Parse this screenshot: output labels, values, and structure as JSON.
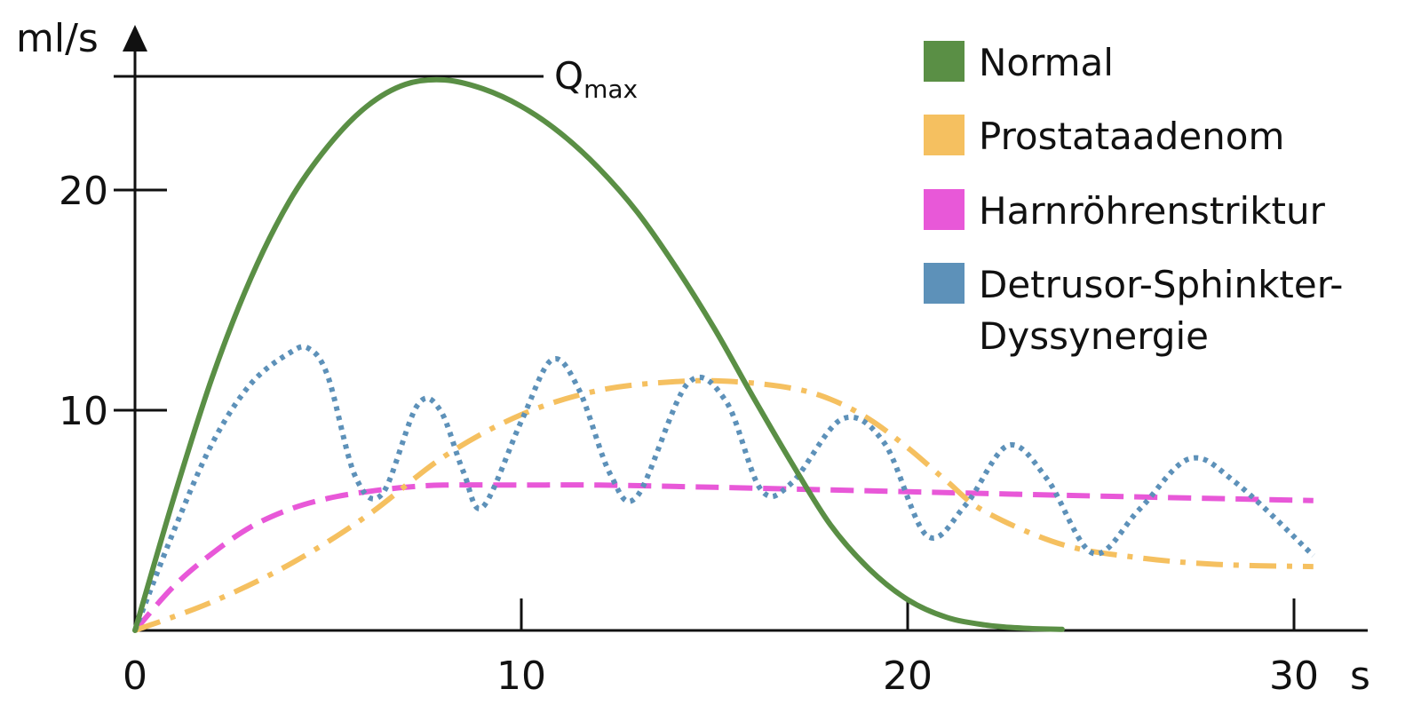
{
  "chart_data": {
    "type": "line",
    "xlabel": "s",
    "ylabel": "ml/s",
    "xlim": [
      0,
      32
    ],
    "ylim": [
      0,
      27
    ],
    "x_ticks": [
      0,
      10,
      20,
      30
    ],
    "x_tick_labels": [
      "0",
      "10",
      "20",
      "30"
    ],
    "y_ticks": [
      10,
      20
    ],
    "y_tick_labels": [
      "10",
      "20"
    ],
    "grid": false,
    "legend_position": "top-right",
    "annotations": [
      {
        "type": "hline",
        "y": 25,
        "label_main": "Q",
        "label_sub": "max"
      }
    ],
    "series": [
      {
        "name": "Normal",
        "color": "#5a8f45",
        "dash": "solid",
        "x": [
          0,
          1,
          2,
          3,
          4,
          5,
          6,
          7,
          8,
          9,
          10,
          11,
          12,
          13,
          14,
          15,
          16,
          17,
          18,
          19,
          20,
          21,
          22,
          23,
          24
        ],
        "y": [
          0,
          6,
          11.5,
          16,
          19.5,
          22,
          23.8,
          24.8,
          25,
          24.6,
          23.8,
          22.6,
          21,
          19,
          16.5,
          13.7,
          10.6,
          7.6,
          4.8,
          2.8,
          1.4,
          0.6,
          0.25,
          0.1,
          0.05
        ]
      },
      {
        "name": "Prostataadenom",
        "color": "#f5c060",
        "dash": "dashdot",
        "x": [
          0,
          2,
          4,
          6,
          8,
          10,
          12,
          14,
          15.5,
          17,
          18,
          19,
          20,
          21,
          22,
          24,
          26,
          28,
          30.5
        ],
        "y": [
          0,
          1.3,
          3,
          5.2,
          7.9,
          9.8,
          10.9,
          11.3,
          11.3,
          11,
          10.5,
          9.6,
          8.3,
          6.8,
          5.4,
          3.9,
          3.3,
          3,
          2.9
        ]
      },
      {
        "name": "Harnröhrenstriktur",
        "color": "#e858d8",
        "dash": "dashed",
        "x": [
          0,
          1,
          2,
          3,
          4,
          5,
          6,
          7,
          8,
          10,
          12,
          15,
          20,
          25,
          30.5
        ],
        "y": [
          0,
          2,
          3.5,
          4.7,
          5.5,
          6,
          6.3,
          6.5,
          6.6,
          6.6,
          6.6,
          6.5,
          6.3,
          6.1,
          5.9
        ]
      },
      {
        "name": "Detrusor-Sphinkter-Dyssynergie",
        "color": "#5d91b9",
        "dash": "dotted",
        "x": [
          0,
          1,
          2,
          3,
          4,
          4.5,
          5,
          5.7,
          6.4,
          7.3,
          7.9,
          8.5,
          9,
          10,
          10.8,
          11.5,
          12.3,
          13,
          14.3,
          15.3,
          16.2,
          17,
          18.3,
          19.4,
          20.5,
          21.5,
          22.6,
          23.6,
          24.8,
          26,
          27.3,
          28.5,
          30.5
        ],
        "y": [
          0,
          4.5,
          8.5,
          11.2,
          12.6,
          12.8,
          11.5,
          7,
          6.2,
          10.2,
          10,
          7.2,
          5.6,
          9.5,
          12.3,
          10.9,
          7.1,
          6.1,
          11.2,
          10.4,
          6.4,
          6.7,
          9.6,
          8.5,
          4.3,
          5.7,
          8.4,
          6.9,
          3.5,
          5.5,
          7.8,
          6.7,
          3.4
        ]
      }
    ]
  }
}
